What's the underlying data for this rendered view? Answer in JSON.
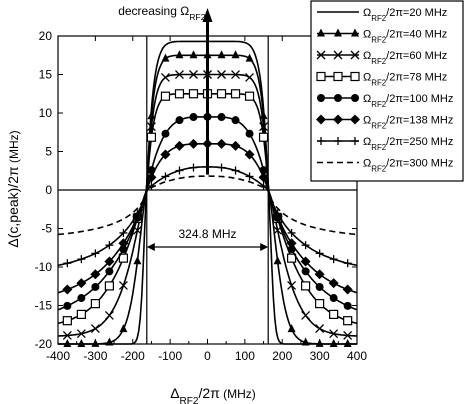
{
  "chart_data": {
    "type": "line",
    "xlabel": "Δ_RF2/2π (MHz)",
    "xlabel_main": "Δ",
    "xlabel_sub": "RF2",
    "xlabel_rest": "/2π",
    "xlabel_unit": "(MHz)",
    "ylabel": "Δ(c,peak)/2π (MHz)",
    "ylabel_main": "Δ(c,peak)/2π",
    "ylabel_unit": "(MHz)",
    "xlim": [
      -400,
      400
    ],
    "ylim": [
      -20,
      20
    ],
    "x_ticks": [
      "-400",
      "-300",
      "-200",
      "-100",
      "0",
      "100",
      "200",
      "300",
      "400"
    ],
    "y_ticks": [
      "20",
      "15",
      "10",
      "5",
      "0",
      "-5",
      "-10",
      "-15",
      "-20"
    ],
    "annotation_top_text": "decreasing Ω",
    "annotation_top_sub": "RF2",
    "annotation_width": "324.8 MHz",
    "annotation_width_range": [
      -162.4,
      162.4
    ],
    "legend_position": "top-right",
    "series": [
      {
        "label": "Ω",
        "sub": "RF2",
        "rest": "/2π=20 MHz",
        "marker": "none",
        "dash": "solid",
        "height": 19.3,
        "neg_floor": -20,
        "neg_span": 20,
        "neg_curve": 1.6
      },
      {
        "label": "Ω",
        "sub": "RF2",
        "rest": "/2π=40 MHz",
        "marker": "triangle",
        "dash": "solid",
        "height": 17.5,
        "neg_floor": -20,
        "neg_span": 60,
        "neg_curve": 1.45
      },
      {
        "label": "Ω",
        "sub": "RF2",
        "rest": "/2π=60 MHz",
        "marker": "x",
        "dash": "solid",
        "height": 15,
        "neg_floor": -19,
        "neg_span": 110,
        "neg_curve": 1.3
      },
      {
        "label": "Ω",
        "sub": "RF2",
        "rest": "/2π=78 MHz",
        "marker": "square",
        "dash": "solid",
        "height": 12.5,
        "neg_floor": -18,
        "neg_span": 170,
        "neg_curve": 1.18
      },
      {
        "label": "Ω",
        "sub": "RF2",
        "rest": "/2π=100 MHz",
        "marker": "circle",
        "dash": "solid",
        "height": 9.5,
        "neg_floor": -17.5,
        "neg_span": 238,
        "neg_curve": 1.0
      },
      {
        "label": "Ω",
        "sub": "RF2",
        "rest": "/2π=138 MHz",
        "marker": "diamond",
        "dash": "solid",
        "height": 6,
        "neg_floor": -15,
        "neg_span": 238,
        "neg_curve": 0.95
      },
      {
        "label": "Ω",
        "sub": "RF2",
        "rest": "/2π=250 MHz",
        "marker": "plus",
        "dash": "solid",
        "height": 3,
        "neg_floor": -11,
        "neg_span": 238,
        "neg_curve": 0.85
      },
      {
        "label": "Ω",
        "sub": "RF2",
        "rest": "/2π=300 MHz",
        "marker": "none",
        "dash": "dashed",
        "height": 1.8,
        "neg_floor": -6.5,
        "neg_span": 238,
        "neg_curve": 0.7
      }
    ]
  }
}
